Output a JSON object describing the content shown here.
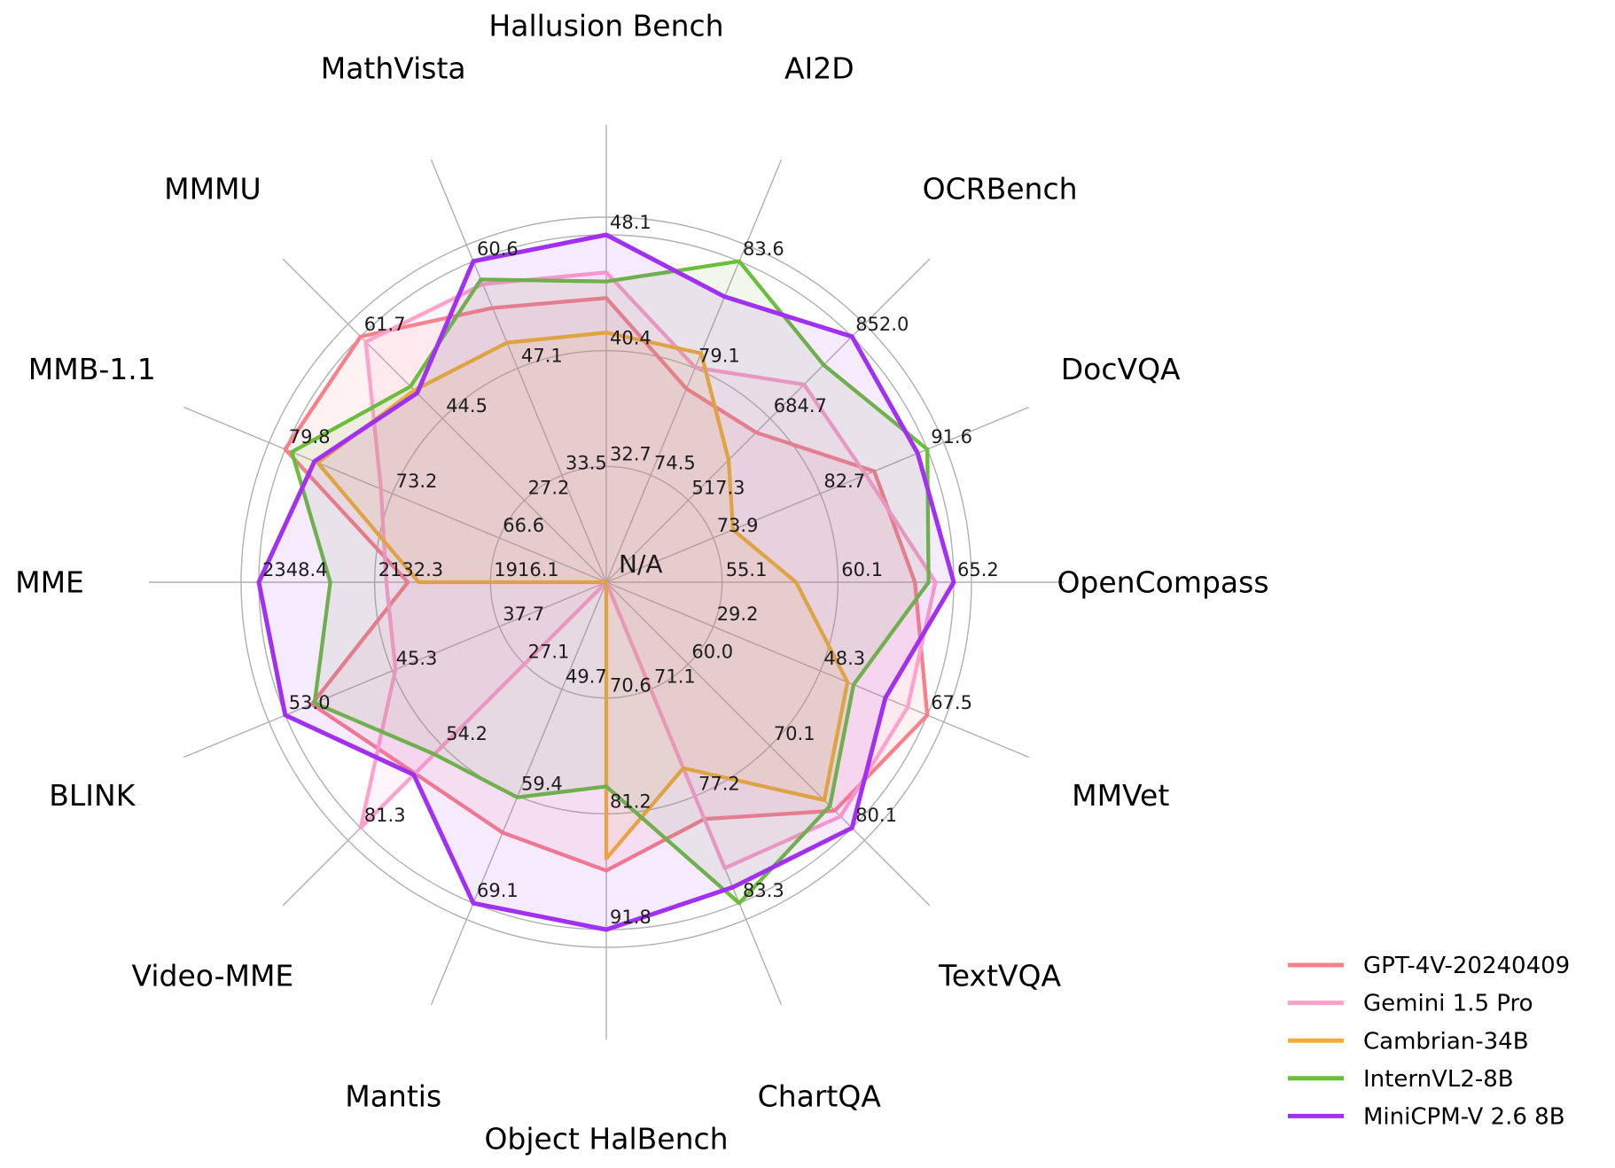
{
  "figure": {
    "background": "#ffffff",
    "center_label": "N/A",
    "grid_color": "#b0b0b0",
    "text_color": "#1c1c1c"
  },
  "chart_data": {
    "type": "radar",
    "title": "",
    "center_label": "N/A",
    "na_policy": "missing values are plotted at the center (N/A)",
    "rings": 3,
    "legend_position": "bottom-right",
    "axes": [
      {
        "label": "Hallusion Bench",
        "angle": 90,
        "min": 25.0,
        "max": 48.1,
        "ticks": [
          "32.7",
          "40.4",
          "48.1"
        ]
      },
      {
        "label": "AI2D",
        "angle": 67.5,
        "min": 70.0,
        "max": 83.6,
        "ticks": [
          "74.5",
          "79.1",
          "83.6"
        ]
      },
      {
        "label": "OCRBench",
        "angle": 45,
        "min": 350.0,
        "max": 852.0,
        "ticks": [
          "517.3",
          "684.7",
          "852.0"
        ]
      },
      {
        "label": "DocVQA",
        "angle": 22.5,
        "min": 65.0,
        "max": 91.6,
        "ticks": [
          "73.9",
          "82.7",
          "91.6"
        ]
      },
      {
        "label": "OpenCompass",
        "angle": 0,
        "min": 50.0,
        "max": 65.2,
        "ticks": [
          "55.1",
          "60.1",
          "65.2"
        ]
      },
      {
        "label": "MMVet",
        "angle": -22.5,
        "min": 10.0,
        "max": 67.5,
        "ticks": [
          "29.2",
          "48.3",
          "67.5"
        ]
      },
      {
        "label": "TextVQA",
        "angle": -45,
        "min": 50.0,
        "max": 80.1,
        "ticks": [
          "60.0",
          "70.1",
          "80.1"
        ]
      },
      {
        "label": "ChartQA",
        "angle": -67.5,
        "min": 65.0,
        "max": 83.3,
        "ticks": [
          "71.1",
          "77.2",
          "83.3"
        ]
      },
      {
        "label": "Object HalBench",
        "angle": -90,
        "min": 60.0,
        "max": 91.8,
        "ticks": [
          "70.6",
          "81.2",
          "91.8"
        ]
      },
      {
        "label": "Mantis",
        "angle": -112.5,
        "min": 40.0,
        "max": 69.1,
        "ticks": [
          "49.7",
          "59.4",
          "69.1"
        ]
      },
      {
        "label": "Video-MME",
        "angle": -135,
        "min": 0.0,
        "max": 81.3,
        "ticks": [
          "27.1",
          "54.2",
          "81.3"
        ]
      },
      {
        "label": "BLINK",
        "angle": -157.5,
        "min": 30.0,
        "max": 53.0,
        "ticks": [
          "37.7",
          "45.3",
          "53.0"
        ]
      },
      {
        "label": "MME",
        "angle": 180,
        "min": 1700.0,
        "max": 2348.4,
        "ticks": [
          "1916.1",
          "2132.3",
          "2348.4"
        ]
      },
      {
        "label": "MMB-1.1",
        "angle": 157.5,
        "min": 60.0,
        "max": 79.8,
        "ticks": [
          "66.6",
          "73.2",
          "79.8"
        ]
      },
      {
        "label": "MMMU",
        "angle": 135,
        "min": 10.0,
        "max": 61.7,
        "ticks": [
          "27.2",
          "44.5",
          "61.7"
        ]
      },
      {
        "label": "MathVista",
        "angle": 112.5,
        "min": 20.0,
        "max": 60.6,
        "ticks": [
          "33.5",
          "47.1",
          "60.6"
        ]
      }
    ],
    "series": [
      {
        "name": "GPT-4V-20240409",
        "color": "#F97F88",
        "line_width": 4.3,
        "values": [
          43.9,
          78.2,
          656,
          87.2,
          63.5,
          67.5,
          78.0,
          78.5,
          86.4,
          62.7,
          63.3,
          51.1,
          2070.2,
          79.8,
          61.7,
          54.7
        ]
      },
      {
        "name": "Gemini 1.5 Pro",
        "color": "#FFA1CB",
        "line_width": 4.3,
        "values": [
          45.6,
          79.1,
          754,
          86.5,
          64.4,
          64.0,
          78.7,
          81.3,
          null,
          null,
          81.3,
          45.1,
          2110.6,
          73.9,
          60.6,
          57.7
        ]
      },
      {
        "name": "Cambrian-34B",
        "color": "#F3AF33",
        "line_width": 4.3,
        "values": [
          41.6,
          79.7,
          600,
          75.5,
          58.3,
          53.2,
          76.7,
          75.6,
          85.3,
          null,
          null,
          null,
          2049.9,
          77.8,
          50.4,
          50.3
        ]
      },
      {
        "name": "InternVL2-8B",
        "color": "#6ABE3C",
        "line_width": 4.3,
        "values": [
          45.0,
          83.6,
          794,
          91.6,
          64.1,
          54.3,
          77.4,
          83.3,
          78.7,
          59.5,
          56.9,
          50.9,
          2215.1,
          79.4,
          51.2,
          58.3
        ]
      },
      {
        "name": "MiniCPM-V 2.6 8B",
        "color": "#A230F0",
        "line_width": 5.0,
        "values": [
          48.1,
          82.1,
          852,
          90.8,
          65.2,
          60.0,
          80.1,
          82.4,
          91.8,
          69.1,
          63.7,
          53.0,
          2348.4,
          78.0,
          49.8,
          60.6
        ]
      }
    ]
  }
}
